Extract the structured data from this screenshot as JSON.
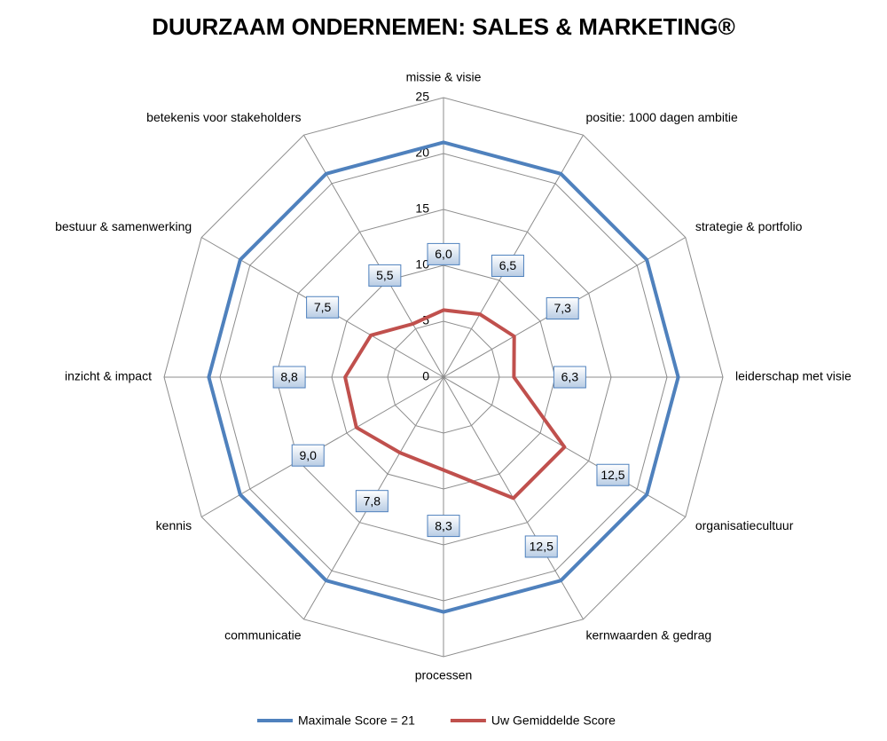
{
  "chart_data": {
    "type": "radar",
    "title": "DUURZAAM ONDERNEMEN: SALES & MARKETING®",
    "categories": [
      "missie & visie",
      "positie: 1000 dagen ambitie",
      "strategie & portfolio",
      "leiderschap met visie",
      "organisatiecultuur",
      "kernwaarden & gedrag",
      "processen",
      "communicatie",
      "kennis",
      "inzicht & impact",
      "bestuur & samenwerking",
      "betekenis voor stakeholders"
    ],
    "ylim": [
      0,
      25
    ],
    "yticks": [
      0,
      5,
      10,
      15,
      20,
      25
    ],
    "grid": true,
    "legend": "bottom",
    "series": [
      {
        "name": "Maximale Score = 21",
        "color": "#4f81bd",
        "values": [
          21,
          21,
          21,
          21,
          21,
          21,
          21,
          21,
          21,
          21,
          21,
          21
        ]
      },
      {
        "name": "Uw Gemiddelde Score",
        "color": "#c0504d",
        "values": [
          6.0,
          6.5,
          7.3,
          6.3,
          12.5,
          12.5,
          8.3,
          7.8,
          9.0,
          8.8,
          7.5,
          5.5
        ],
        "value_labels": [
          "6,0",
          "6,5",
          "7,3",
          "6,3",
          "12,5",
          "12,5",
          "8,3",
          "7,8",
          "9,0",
          "8,8",
          "7,5",
          "5,5"
        ]
      }
    ]
  }
}
